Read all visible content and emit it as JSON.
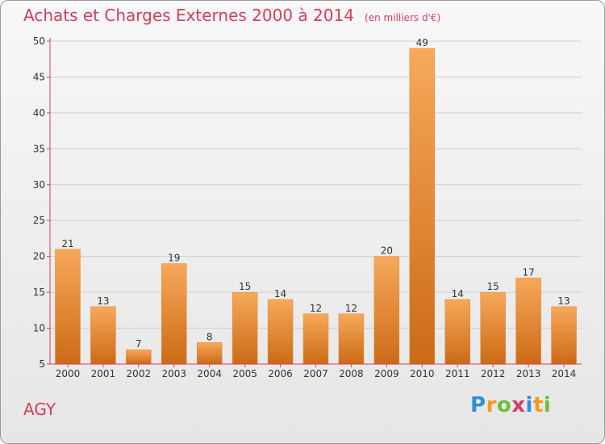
{
  "title": "Achats et Charges Externes 2000 à 2014",
  "unit": "(en milliers d'€)",
  "commune": "AGY",
  "logo": {
    "letters": [
      "P",
      "r",
      "o",
      "x",
      "i",
      "t",
      "i"
    ],
    "colors": [
      "#2f8fd8",
      "#f29a21",
      "#6cbf3a",
      "#d93a6b",
      "#2f8fd8",
      "#f29a21",
      "#6cbf3a"
    ]
  },
  "colors": {
    "bar_light": "#f7a95a",
    "bar_dark": "#cc6a16",
    "axis": "#d0405a",
    "grid": "#cfcfcf"
  },
  "chart_data": {
    "type": "bar",
    "categories": [
      "2000",
      "2001",
      "2002",
      "2003",
      "2004",
      "2005",
      "2006",
      "2007",
      "2008",
      "2009",
      "2010",
      "2011",
      "2012",
      "2013",
      "2014"
    ],
    "values": [
      21,
      13,
      7,
      19,
      8,
      15,
      14,
      12,
      12,
      20,
      49,
      14,
      15,
      17,
      13
    ],
    "ylim": [
      5,
      50
    ],
    "yticks": [
      5,
      10,
      15,
      20,
      25,
      30,
      35,
      40,
      45,
      50
    ],
    "grid": true
  }
}
